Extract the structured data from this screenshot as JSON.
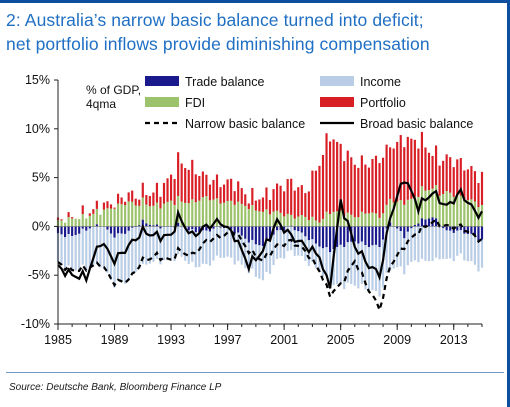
{
  "title": "2: Australia’s narrow basic balance turned into deficit; net portfolio inflows provide diminishing compensation",
  "title_line1": "2: Australia’s narrow basic balance turned into deficit;",
  "title_line2": "net portfolio inflows provide diminishing compensation",
  "source": "Source:  Deutsche Bank, Bloomberg Finance LP",
  "colors": {
    "frame": "#0d4f9e",
    "title": "#1f6fc4",
    "trade": "#1a1a8c",
    "income": "#b9cde6",
    "fdi": "#9cc26b",
    "portfolio": "#d91f26",
    "line": "#000000"
  },
  "chart_data": {
    "type": "bar",
    "subtype": "stacked bar with lines",
    "ylabel_line1": "% of GDP,",
    "ylabel_line2": "4qma",
    "ylim": [
      -10,
      15
    ],
    "y_ticks": [
      15,
      10,
      5,
      0,
      -5,
      -10
    ],
    "y_tick_labels": [
      "15%",
      "10%",
      "5%",
      "0%",
      "-5%",
      "-10%"
    ],
    "x_range": [
      1985,
      2015
    ],
    "x_ticks": [
      1985,
      1989,
      1993,
      1997,
      2001,
      2005,
      2009,
      2013
    ],
    "x_tick_labels": [
      "1985",
      "1989",
      "1993",
      "1997",
      "2001",
      "2005",
      "2009",
      "2013"
    ],
    "grid": false,
    "legend_position": "top",
    "legend": [
      {
        "name": "Trade balance",
        "kind": "bar",
        "color": "#1a1a8c"
      },
      {
        "name": "Income",
        "kind": "bar",
        "color": "#b9cde6"
      },
      {
        "name": "FDI",
        "kind": "bar",
        "color": "#9cc26b"
      },
      {
        "name": "Portfolio",
        "kind": "bar",
        "color": "#d91f26"
      },
      {
        "name": "Narrow basic balance",
        "kind": "dashed-line",
        "color": "#000000"
      },
      {
        "name": "Broad basic balance",
        "kind": "line",
        "color": "#000000"
      }
    ],
    "anchors": [
      {
        "year": 1985.0,
        "trade": -0.8,
        "income": -3.0,
        "fdi": 0.5,
        "portfolio": 0.0,
        "narrow": -3.8,
        "broad": -4.2
      },
      {
        "year": 1986.0,
        "trade": -1.0,
        "income": -3.5,
        "fdi": 0.8,
        "portfolio": 0.1,
        "narrow": -4.5,
        "broad": -5.0
      },
      {
        "year": 1987.0,
        "trade": -0.3,
        "income": -4.0,
        "fdi": 1.0,
        "portfolio": 0.3,
        "narrow": -4.3,
        "broad": -5.2
      },
      {
        "year": 1988.0,
        "trade": 0.2,
        "income": -4.0,
        "fdi": 1.5,
        "portfolio": 0.5,
        "narrow": -3.8,
        "broad": -1.5
      },
      {
        "year": 1989.0,
        "trade": -1.0,
        "income": -5.0,
        "fdi": 2.0,
        "portfolio": 0.5,
        "narrow": -5.8,
        "broad": -3.5
      },
      {
        "year": 1990.0,
        "trade": -0.5,
        "income": -5.0,
        "fdi": 2.5,
        "portfolio": 0.8,
        "narrow": -5.5,
        "broad": -2.0
      },
      {
        "year": 1991.0,
        "trade": 0.5,
        "income": -4.0,
        "fdi": 2.0,
        "portfolio": 1.0,
        "narrow": -3.5,
        "broad": -0.5
      },
      {
        "year": 1992.0,
        "trade": 0.0,
        "income": -3.5,
        "fdi": 2.0,
        "portfolio": 1.5,
        "narrow": -3.0,
        "broad": -1.0
      },
      {
        "year": 1993.0,
        "trade": 0.0,
        "income": -3.5,
        "fdi": 2.5,
        "portfolio": 2.5,
        "narrow": -3.5,
        "broad": -1.0
      },
      {
        "year": 1993.5,
        "trade": 0.2,
        "income": -3.0,
        "fdi": 2.5,
        "portfolio": 4.0,
        "narrow": -2.5,
        "broad": 1.0
      },
      {
        "year": 1994.5,
        "trade": -0.5,
        "income": -3.5,
        "fdi": 2.5,
        "portfolio": 3.5,
        "narrow": -3.0,
        "broad": -1.0
      },
      {
        "year": 1995.5,
        "trade": -0.5,
        "income": -3.5,
        "fdi": 3.0,
        "portfolio": 2.0,
        "narrow": -1.5,
        "broad": 0.0
      },
      {
        "year": 1996.5,
        "trade": 0.0,
        "income": -3.0,
        "fdi": 2.5,
        "portfolio": 2.0,
        "narrow": -1.0,
        "broad": 0.5
      },
      {
        "year": 1997.5,
        "trade": -0.5,
        "income": -3.0,
        "fdi": 2.5,
        "portfolio": 2.0,
        "narrow": -0.5,
        "broad": -1.0
      },
      {
        "year": 1998.5,
        "trade": -1.5,
        "income": -3.0,
        "fdi": 2.0,
        "portfolio": 1.0,
        "narrow": -2.5,
        "broad": -4.0
      },
      {
        "year": 1999.5,
        "trade": -2.0,
        "income": -3.5,
        "fdi": 1.5,
        "portfolio": 1.5,
        "narrow": -3.5,
        "broad": -2.5
      },
      {
        "year": 2000.5,
        "trade": -0.5,
        "income": -3.0,
        "fdi": 1.5,
        "portfolio": 2.5,
        "narrow": -2.0,
        "broad": 0.5
      },
      {
        "year": 2001.5,
        "trade": 0.0,
        "income": -2.5,
        "fdi": 1.0,
        "portfolio": 3.5,
        "narrow": -1.5,
        "broad": -1.0
      },
      {
        "year": 2002.5,
        "trade": -1.0,
        "income": -2.5,
        "fdi": 1.0,
        "portfolio": 2.5,
        "narrow": -2.5,
        "broad": -2.0
      },
      {
        "year": 2003.5,
        "trade": -2.0,
        "income": -2.5,
        "fdi": 0.5,
        "portfolio": 6.0,
        "narrow": -4.5,
        "broad": -3.0
      },
      {
        "year": 2004.2,
        "trade": -2.5,
        "income": -3.5,
        "fdi": 1.5,
        "portfolio": 8.0,
        "narrow": -7.0,
        "broad": -6.5
      },
      {
        "year": 2005.0,
        "trade": -2.0,
        "income": -4.0,
        "fdi": 1.5,
        "portfolio": 6.5,
        "narrow": -6.0,
        "broad": 2.5
      },
      {
        "year": 2006.0,
        "trade": -1.5,
        "income": -4.5,
        "fdi": 1.0,
        "portfolio": 5.5,
        "narrow": -3.5,
        "broad": -2.0
      },
      {
        "year": 2007.0,
        "trade": -2.0,
        "income": -4.5,
        "fdi": 1.5,
        "portfolio": 5.0,
        "narrow": -6.5,
        "broad": -4.0
      },
      {
        "year": 2007.8,
        "trade": -2.0,
        "income": -5.0,
        "fdi": 1.0,
        "portfolio": 6.0,
        "narrow": -8.5,
        "broad": -5.0
      },
      {
        "year": 2008.5,
        "trade": 0.5,
        "income": -4.5,
        "fdi": 2.5,
        "portfolio": 5.5,
        "narrow": -4.0,
        "broad": 1.0
      },
      {
        "year": 2009.5,
        "trade": -1.0,
        "income": -3.5,
        "fdi": 2.5,
        "portfolio": 6.5,
        "narrow": -2.0,
        "broad": 5.0
      },
      {
        "year": 2010.5,
        "trade": 0.5,
        "income": -3.5,
        "fdi": 3.0,
        "portfolio": 5.5,
        "narrow": -0.5,
        "broad": 2.0
      },
      {
        "year": 2011.5,
        "trade": 1.0,
        "income": -3.5,
        "fdi": 3.0,
        "portfolio": 3.5,
        "narrow": 0.5,
        "broad": 3.5
      },
      {
        "year": 2012.5,
        "trade": -0.5,
        "income": -3.0,
        "fdi": 3.5,
        "portfolio": 3.5,
        "narrow": 0.0,
        "broad": 2.0
      },
      {
        "year": 2013.5,
        "trade": -0.5,
        "income": -2.5,
        "fdi": 3.0,
        "portfolio": 3.5,
        "narrow": 0.0,
        "broad": 3.5
      },
      {
        "year": 2014.5,
        "trade": -1.0,
        "income": -3.0,
        "fdi": 2.5,
        "portfolio": 3.0,
        "narrow": -1.0,
        "broad": 1.5
      },
      {
        "year": 2015.0,
        "trade": -1.5,
        "income": -3.0,
        "fdi": 2.0,
        "portfolio": 3.0,
        "narrow": -1.5,
        "broad": 1.2
      }
    ]
  }
}
